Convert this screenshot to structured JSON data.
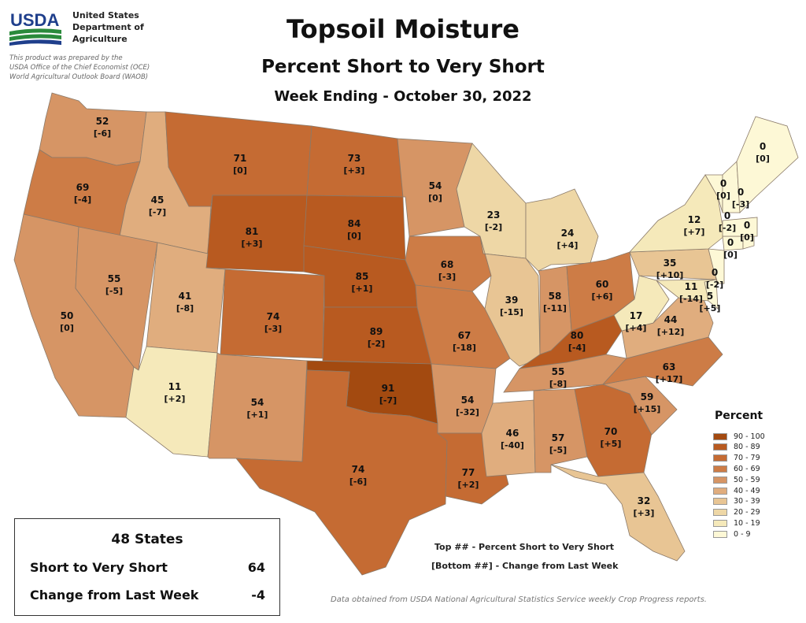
{
  "header": {
    "agency_lines": "United States\nDepartment of\nAgriculture",
    "logo_text": "USDA",
    "prepared_by": "This product was prepared by the\nUSDA Office of the Chief Economist (OCE)\nWorld Agricultural Outlook Board (WAOB)",
    "title": "Topsoil Moisture",
    "subtitle": "Percent Short to Very Short",
    "week": "Week Ending - October 30, 2022"
  },
  "legend": {
    "title": "Percent",
    "bins": [
      {
        "label": "90 - 100",
        "color": "#a34a10"
      },
      {
        "label": "80 - 89",
        "color": "#b85a20"
      },
      {
        "label": "70 - 79",
        "color": "#c56b33"
      },
      {
        "label": "60 - 69",
        "color": "#cd7c46"
      },
      {
        "label": "50 - 59",
        "color": "#d69565"
      },
      {
        "label": "40 - 49",
        "color": "#e0ad7e"
      },
      {
        "label": "30 - 39",
        "color": "#e8c594"
      },
      {
        "label": "20 - 29",
        "color": "#eed7a6"
      },
      {
        "label": "10 - 19",
        "color": "#f5e9ba"
      },
      {
        "label": "0 - 9",
        "color": "#fdf8d6"
      }
    ]
  },
  "summary": {
    "heading": "48 States",
    "rows": [
      {
        "label": "Short to Very Short",
        "value": "64"
      },
      {
        "label": "Change from Last Week",
        "value": "-4"
      }
    ]
  },
  "key_notes": {
    "top": "Top ## - Percent Short to Very Short",
    "bottom": "[Bottom ##] - Change from Last Week"
  },
  "source": "Data obtained from USDA National Agricultural Statistics Service weekly Crop Progress reports.",
  "states": [
    {
      "id": "WA",
      "value": "52",
      "change": "[-6]"
    },
    {
      "id": "OR",
      "value": "69",
      "change": "[-4]"
    },
    {
      "id": "CA",
      "value": "50",
      "change": "[0]"
    },
    {
      "id": "ID",
      "value": "45",
      "change": "[-7]"
    },
    {
      "id": "NV",
      "value": "55",
      "change": "[-5]"
    },
    {
      "id": "MT",
      "value": "71",
      "change": "[0]"
    },
    {
      "id": "WY",
      "value": "81",
      "change": "[+3]"
    },
    {
      "id": "UT",
      "value": "41",
      "change": "[-8]"
    },
    {
      "id": "AZ",
      "value": "11",
      "change": "[+2]"
    },
    {
      "id": "CO",
      "value": "74",
      "change": "[-3]"
    },
    {
      "id": "NM",
      "value": "54",
      "change": "[+1]"
    },
    {
      "id": "ND",
      "value": "73",
      "change": "[+3]"
    },
    {
      "id": "SD",
      "value": "84",
      "change": "[0]"
    },
    {
      "id": "NE",
      "value": "85",
      "change": "[+1]"
    },
    {
      "id": "KS",
      "value": "89",
      "change": "[-2]"
    },
    {
      "id": "OK",
      "value": "91",
      "change": "[-7]"
    },
    {
      "id": "TX",
      "value": "74",
      "change": "[-6]"
    },
    {
      "id": "MN",
      "value": "54",
      "change": "[0]"
    },
    {
      "id": "IA",
      "value": "68",
      "change": "[-3]"
    },
    {
      "id": "MO",
      "value": "67",
      "change": "[-18]"
    },
    {
      "id": "AR",
      "value": "54",
      "change": "[-32]"
    },
    {
      "id": "LA",
      "value": "77",
      "change": "[+2]"
    },
    {
      "id": "WI",
      "value": "23",
      "change": "[-2]"
    },
    {
      "id": "IL",
      "value": "39",
      "change": "[-15]"
    },
    {
      "id": "MS",
      "value": "46",
      "change": "[-40]"
    },
    {
      "id": "MI",
      "value": "24",
      "change": "[+4]"
    },
    {
      "id": "IN",
      "value": "58",
      "change": "[-11]"
    },
    {
      "id": "KY",
      "value": "80",
      "change": "[-4]"
    },
    {
      "id": "TN",
      "value": "55",
      "change": "[-8]"
    },
    {
      "id": "AL",
      "value": "57",
      "change": "[-5]"
    },
    {
      "id": "OH",
      "value": "60",
      "change": "[+6]"
    },
    {
      "id": "GA",
      "value": "70",
      "change": "[+5]"
    },
    {
      "id": "FL",
      "value": "32",
      "change": "[+3]"
    },
    {
      "id": "SC",
      "value": "59",
      "change": "[+15]"
    },
    {
      "id": "NC",
      "value": "63",
      "change": "[+17]"
    },
    {
      "id": "VA",
      "value": "44",
      "change": "[+12]"
    },
    {
      "id": "WV",
      "value": "17",
      "change": "[+4]"
    },
    {
      "id": "PA",
      "value": "35",
      "change": "[+10]"
    },
    {
      "id": "MD",
      "value": "11",
      "change": "[-14]"
    },
    {
      "id": "DE",
      "value": "5",
      "change": "[+5]"
    },
    {
      "id": "NJ",
      "value": "0",
      "change": "[-2]"
    },
    {
      "id": "NY",
      "value": "12",
      "change": "[+7]"
    },
    {
      "id": "CT",
      "value": "0",
      "change": "[0]"
    },
    {
      "id": "RI",
      "value": "0",
      "change": "[0]"
    },
    {
      "id": "MA",
      "value": "0",
      "change": "[-2]"
    },
    {
      "id": "VT",
      "value": "0",
      "change": "[0]"
    },
    {
      "id": "NH",
      "value": "0",
      "change": "[-3]"
    },
    {
      "id": "ME",
      "value": "0",
      "change": "[0]"
    }
  ]
}
